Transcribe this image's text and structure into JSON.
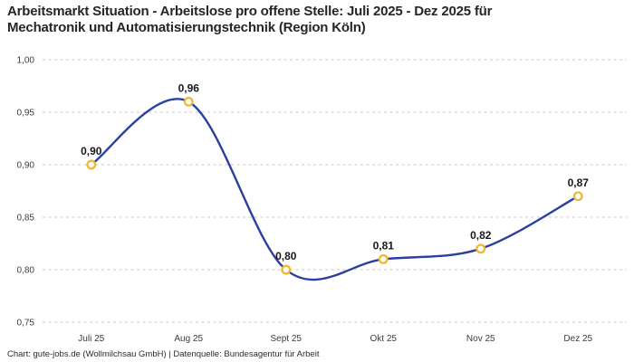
{
  "title_lines": [
    "Arbeitsmarkt Situation - Arbeitslose pro offene Stelle: Juli 2025 - Dez 2025 für",
    "Mechatronik und Automatisierungstechnik (Region Köln)"
  ],
  "footer": "Chart: gute-jobs.de (Wollmilchsau GmbH) | Datenquelle: Bundesagentur für Arbeit",
  "chart_data": {
    "type": "line",
    "title": "Arbeitsmarkt Situation - Arbeitslose pro offene Stelle: Juli 2025 - Dez 2025 für Mechatronik und Automatisierungstechnik (Region Köln)",
    "categories": [
      "Juli 25",
      "Aug 25",
      "Sept 25",
      "Okt 25",
      "Nov 25",
      "Dez 25"
    ],
    "values": [
      0.9,
      0.96,
      0.8,
      0.81,
      0.82,
      0.87
    ],
    "data_labels": [
      "0,90",
      "0,96",
      "0,80",
      "0,81",
      "0,82",
      "0,87"
    ],
    "y_ticks": [
      1.0,
      0.95,
      0.9,
      0.85,
      0.8,
      0.75
    ],
    "y_tick_labels": [
      "1,00",
      "0,95",
      "0,90",
      "0,85",
      "0,80",
      "0,75"
    ],
    "ylim": [
      0.75,
      1.0
    ],
    "xlabel": "",
    "ylabel": "",
    "grid": "horizontal-dashed",
    "legend": "none",
    "curve": "smooth",
    "colors": {
      "line": "#2b3f9e",
      "marker_stroke": "#f3b62f",
      "marker_fill": "#ffffff",
      "grid": "#c8c8c8",
      "tick_text": "#3c3c3c",
      "data_label": "#17171f",
      "title_text": "#26262a"
    }
  }
}
